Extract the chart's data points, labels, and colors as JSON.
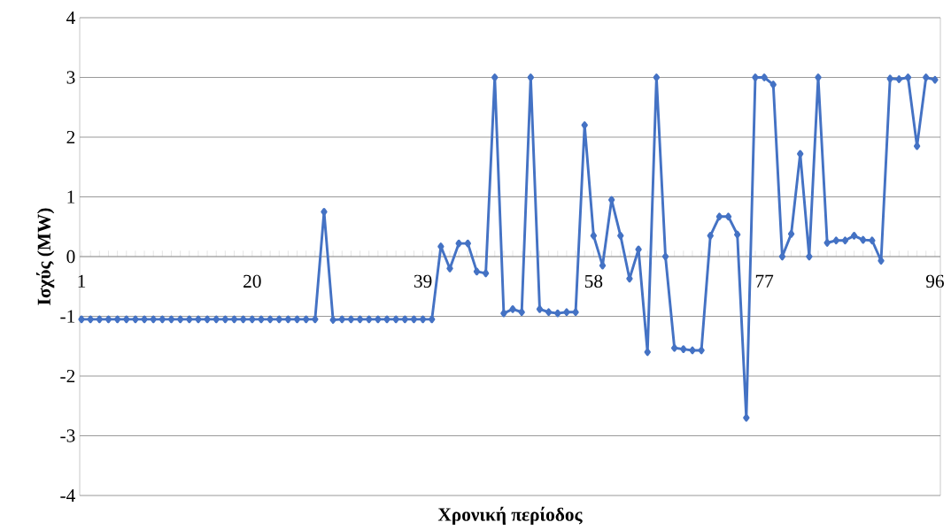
{
  "chart_data": {
    "type": "line",
    "xlabel": "Χρονική περίοδος",
    "ylabel": "Ισχύς (MW)",
    "categories": [
      "1",
      null,
      null,
      null,
      null,
      null,
      null,
      null,
      null,
      null,
      null,
      null,
      null,
      null,
      null,
      null,
      null,
      null,
      null,
      "20",
      null,
      null,
      null,
      null,
      null,
      null,
      null,
      null,
      null,
      null,
      null,
      null,
      null,
      null,
      null,
      null,
      null,
      null,
      "39",
      null,
      null,
      null,
      null,
      null,
      null,
      null,
      null,
      null,
      null,
      null,
      null,
      null,
      null,
      null,
      null,
      null,
      null,
      "58",
      null,
      null,
      null,
      null,
      null,
      null,
      null,
      null,
      null,
      null,
      null,
      null,
      null,
      null,
      null,
      null,
      null,
      null,
      "77",
      null,
      null,
      null,
      null,
      null,
      null,
      null,
      null,
      null,
      null,
      null,
      null,
      null,
      null,
      null,
      null,
      null,
      null,
      "96"
    ],
    "series": [
      {
        "color": "#4472c4",
        "values": [
          -1.05,
          -1.05,
          -1.05,
          -1.05,
          -1.05,
          -1.05,
          -1.05,
          -1.05,
          -1.05,
          -1.05,
          -1.05,
          -1.05,
          -1.05,
          -1.05,
          -1.05,
          -1.05,
          -1.05,
          -1.05,
          -1.05,
          -1.05,
          -1.05,
          -1.05,
          -1.05,
          -1.05,
          -1.05,
          -1.05,
          -1.05,
          0.75,
          -1.06,
          -1.05,
          -1.05,
          -1.05,
          -1.05,
          -1.05,
          -1.05,
          -1.05,
          -1.05,
          -1.05,
          -1.05,
          -1.05,
          0.17,
          -0.2,
          0.22,
          0.22,
          -0.25,
          -0.28,
          3.0,
          -0.95,
          -0.88,
          -0.93,
          3.0,
          -0.88,
          -0.93,
          -0.95,
          -0.93,
          -0.93,
          2.2,
          0.35,
          -0.15,
          0.95,
          0.35,
          -0.37,
          0.12,
          -1.6,
          3.0,
          0.0,
          -1.53,
          -1.55,
          -1.57,
          -1.57,
          0.35,
          0.67,
          0.67,
          0.37,
          -2.7,
          3.0,
          3.0,
          2.88,
          0.0,
          0.38,
          1.72,
          0.0,
          3.0,
          0.23,
          0.27,
          0.27,
          0.35,
          0.28,
          0.27,
          -0.07,
          2.98,
          2.97,
          3.0,
          1.85,
          3.0,
          2.96
        ]
      }
    ],
    "ylim": [
      -4,
      4
    ],
    "yticks": [
      -4,
      -3,
      -2,
      -1,
      0,
      1,
      2,
      3,
      4
    ],
    "grid": "y",
    "marker": "diamond",
    "line_style": "solid"
  }
}
